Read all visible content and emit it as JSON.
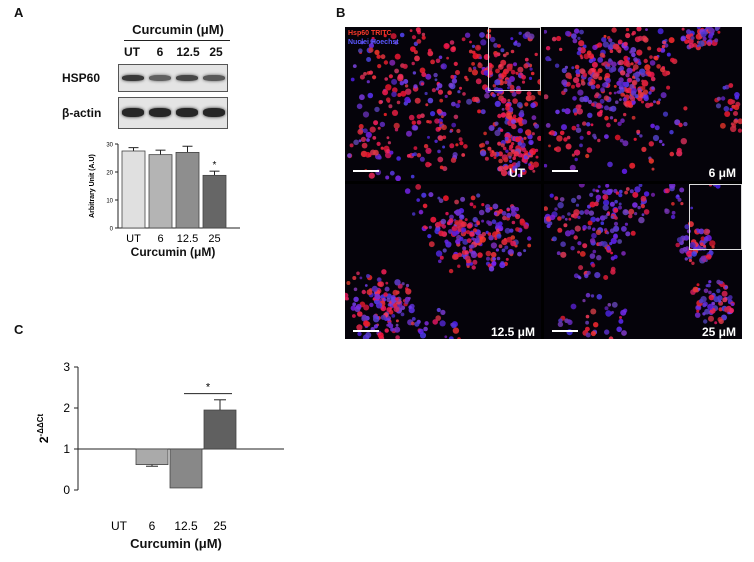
{
  "panel_labels": {
    "a": "A",
    "b": "B",
    "c": "C"
  },
  "blot": {
    "title": "Curcumin (μM)",
    "lanes": [
      "UT",
      "6",
      "12.5",
      "25"
    ],
    "rows": [
      {
        "name": "HSP60",
        "intensity": [
          0.78,
          0.62,
          0.72,
          0.65
        ]
      },
      {
        "name": "β-actin",
        "intensity": [
          0.85,
          0.85,
          0.85,
          0.85
        ]
      }
    ]
  },
  "micro": {
    "legend_top": "Hsp60 TRITC",
    "legend_bottom": "Nuclei Hoechst",
    "cells": [
      {
        "label": "UT",
        "density": 0.75,
        "blue": 0.35
      },
      {
        "label": "6 μM",
        "density": 0.7,
        "blue": 0.45
      },
      {
        "label": "12.5 μM",
        "density": 0.45,
        "blue": 0.55
      },
      {
        "label": "25 μM",
        "density": 0.35,
        "blue": 0.7
      }
    ]
  },
  "chart_data": [
    {
      "type": "bar",
      "panel": "A",
      "categories": [
        "UT",
        "6",
        "12.5",
        "25"
      ],
      "values": [
        27.5,
        26.2,
        27.0,
        18.8
      ],
      "errors": [
        1.2,
        1.6,
        2.2,
        1.5
      ],
      "ylabel": "Arbitrary Unit (A.U)",
      "xlabel": "Curcumin (μM)",
      "ylim": [
        0,
        30
      ],
      "yticks": [
        0,
        10,
        20,
        30
      ],
      "annotations": [
        {
          "category": "25",
          "text": "*"
        }
      ],
      "colors": [
        "#e0e0e0",
        "#b4b4b4",
        "#8e8e8e",
        "#666666"
      ]
    },
    {
      "type": "bar",
      "panel": "C",
      "categories": [
        "UT",
        "6",
        "12.5",
        "25"
      ],
      "values": [
        1.0,
        0.62,
        0.05,
        1.95
      ],
      "errors": [
        0,
        0.04,
        0.0,
        0.25
      ],
      "baseline": 1,
      "ylabel": "2^-ΔΔCt",
      "ylabel_base": "2",
      "ylabel_exp": "-ΔΔCt",
      "xlabel": "Curcumin (μM)",
      "ylim": [
        0,
        3
      ],
      "yticks": [
        0,
        1,
        2,
        3
      ],
      "annotations": [
        {
          "between": [
            "12.5",
            "25"
          ],
          "text": "*"
        }
      ],
      "colors": [
        "#ffffff",
        "#aaaaaa",
        "#888888",
        "#606060"
      ]
    }
  ]
}
